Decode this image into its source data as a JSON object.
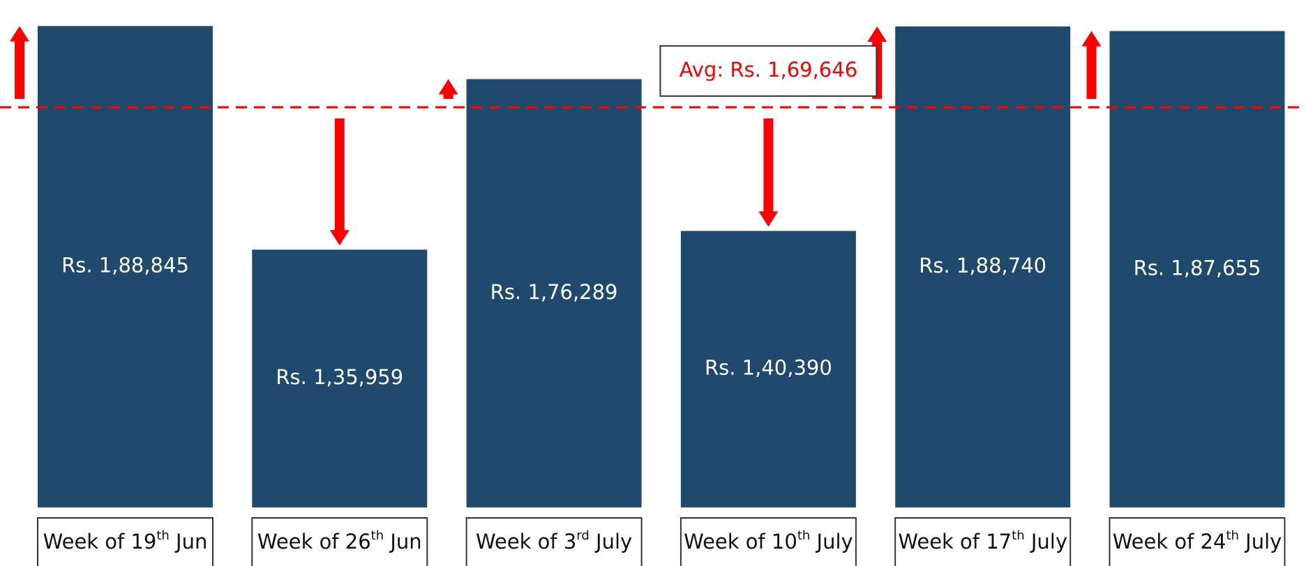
{
  "chart_data": {
    "type": "bar",
    "categories": [
      "Week of 19th Jun",
      "Week of 26th Jun",
      "Week of 3rd July",
      "Week of 10th July",
      "Week of 17th July",
      "Week of 24th July"
    ],
    "values": [
      188845,
      135959,
      176289,
      140390,
      188740,
      187655
    ],
    "value_labels": [
      "Rs. 1,88,845",
      "Rs. 1,35,959",
      "Rs. 1,76,289",
      "Rs. 1,40,390",
      "Rs. 1,88,740",
      "Rs. 1,87,655"
    ],
    "color": "#1f4a6e",
    "average": {
      "value": 169646,
      "label": "Avg: Rs. 1,69,646"
    },
    "average_color": "#ff0000",
    "ylim": [
      75000,
      195000
    ]
  }
}
